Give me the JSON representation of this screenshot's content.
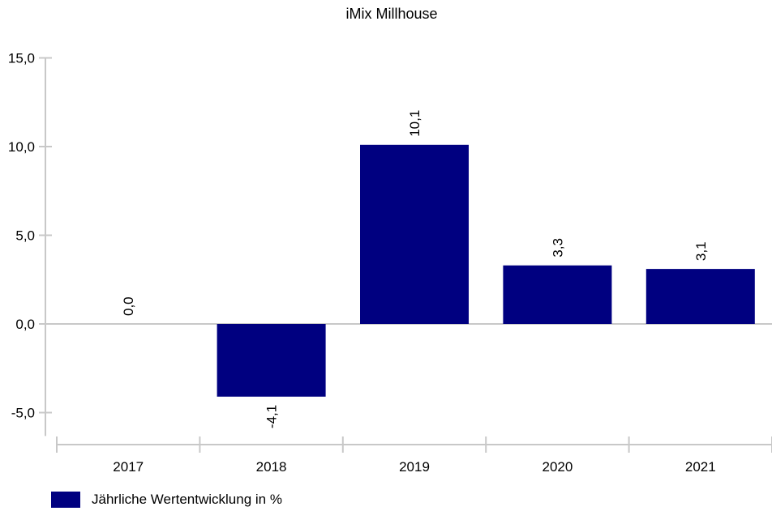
{
  "chart_data": {
    "type": "bar",
    "title": "iMix Millhouse",
    "categories": [
      "2017",
      "2018",
      "2019",
      "2020",
      "2021"
    ],
    "series": [
      {
        "name": "Jährliche Wertentwicklung in %",
        "values": [
          0.0,
          -4.1,
          10.1,
          3.3,
          3.1
        ],
        "value_labels": [
          "0,0",
          "-4,1",
          "10,1",
          "3,3",
          "3,1"
        ]
      }
    ],
    "ylim": [
      -6.5,
      15.0
    ],
    "yticks": [
      -5.0,
      0.0,
      5.0,
      10.0,
      15.0
    ],
    "ytick_labels": [
      "-5,0",
      "0,0",
      "5,0",
      "10,0",
      "15,0"
    ],
    "xlabel": "",
    "ylabel": "",
    "grid": false,
    "legend_position": "bottom-left",
    "colors": {
      "bar": "#000080",
      "axis": "#c8c8c8",
      "text": "#000000"
    }
  }
}
